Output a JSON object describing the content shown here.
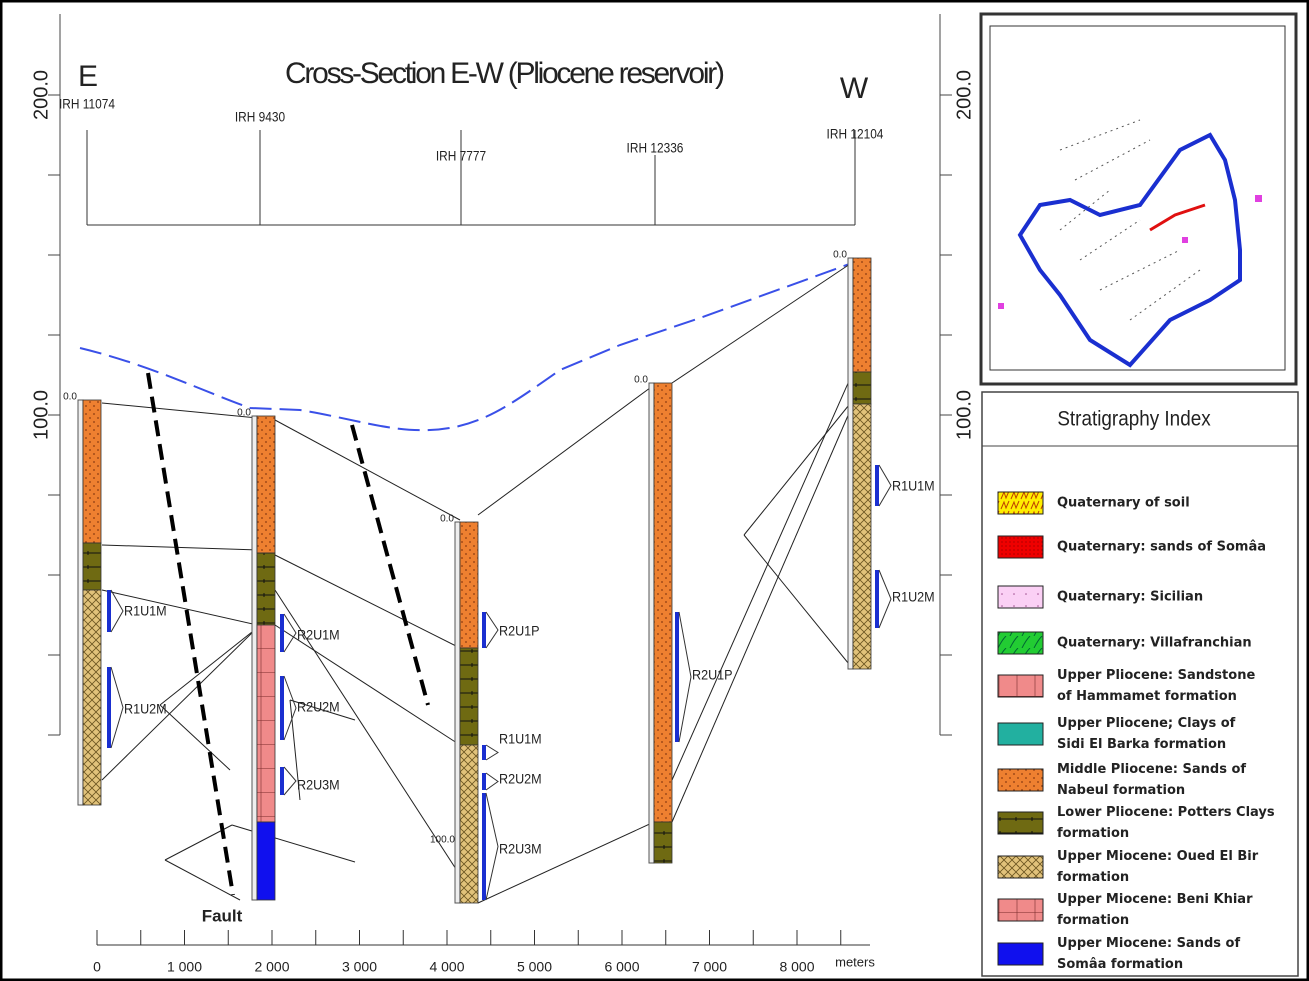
{
  "title": "Cross-Section E-W (Pliocene reservoir)",
  "directions": {
    "east": "E",
    "west": "W"
  },
  "depth_axis": {
    "left": [
      "200.0",
      "100.0"
    ],
    "right": [
      "200.0",
      "100.0"
    ]
  },
  "wells": [
    {
      "name": "IRH 11074",
      "top": "0.0"
    },
    {
      "name": "IRH 9430",
      "top": "0.0"
    },
    {
      "name": "IRH 7777",
      "top": "0.0",
      "bottom": "100.0"
    },
    {
      "name": "IRH 12336",
      "top": "0.0"
    },
    {
      "name": "IRH 12104",
      "top": "0.0"
    }
  ],
  "units": [
    {
      "label": "R1U1M"
    },
    {
      "label": "R1U2M"
    },
    {
      "label": "R2U1M"
    },
    {
      "label": "R2U2M"
    },
    {
      "label": "R2U3M"
    },
    {
      "label": "R2U1P"
    },
    {
      "label": "R1U1M"
    },
    {
      "label": "R2U2M"
    },
    {
      "label": "R2U3M"
    },
    {
      "label": "R2U1P"
    },
    {
      "label": "R1U1M"
    },
    {
      "label": "R1U2M"
    }
  ],
  "fault": "Fault",
  "distance_axis": {
    "labels": [
      "0",
      "1 000",
      "2 000",
      "3 000",
      "4 000",
      "5 000",
      "6 000",
      "7 000",
      "8 000"
    ],
    "unit": "meters"
  },
  "legend": {
    "title": "Stratigraphy Index",
    "items": [
      {
        "lines": [
          "Quaternary of soil"
        ]
      },
      {
        "lines": [
          "Quaternary: sands of Somâa"
        ]
      },
      {
        "lines": [
          "Quaternary: Sicilian"
        ]
      },
      {
        "lines": [
          "Quaternary: Villafranchian"
        ]
      },
      {
        "lines": [
          "Upper Pliocene: Sandstone",
          "of Hammamet formation"
        ]
      },
      {
        "lines": [
          "Upper Pliocene; Clays of",
          "Sidi El Barka formation"
        ]
      },
      {
        "lines": [
          "Middle Pliocene: Sands of",
          "Nabeul formation"
        ]
      },
      {
        "lines": [
          "Lower Pliocene: Potters Clays",
          "formation"
        ]
      },
      {
        "lines": [
          "Upper Miocene: Oued El Bir",
          "formation"
        ]
      },
      {
        "lines": [
          "Upper Miocene: Beni Khiar",
          "formation"
        ]
      },
      {
        "lines": [
          "Upper Miocene: Sands  of",
          "Somâa formation"
        ]
      }
    ]
  }
}
